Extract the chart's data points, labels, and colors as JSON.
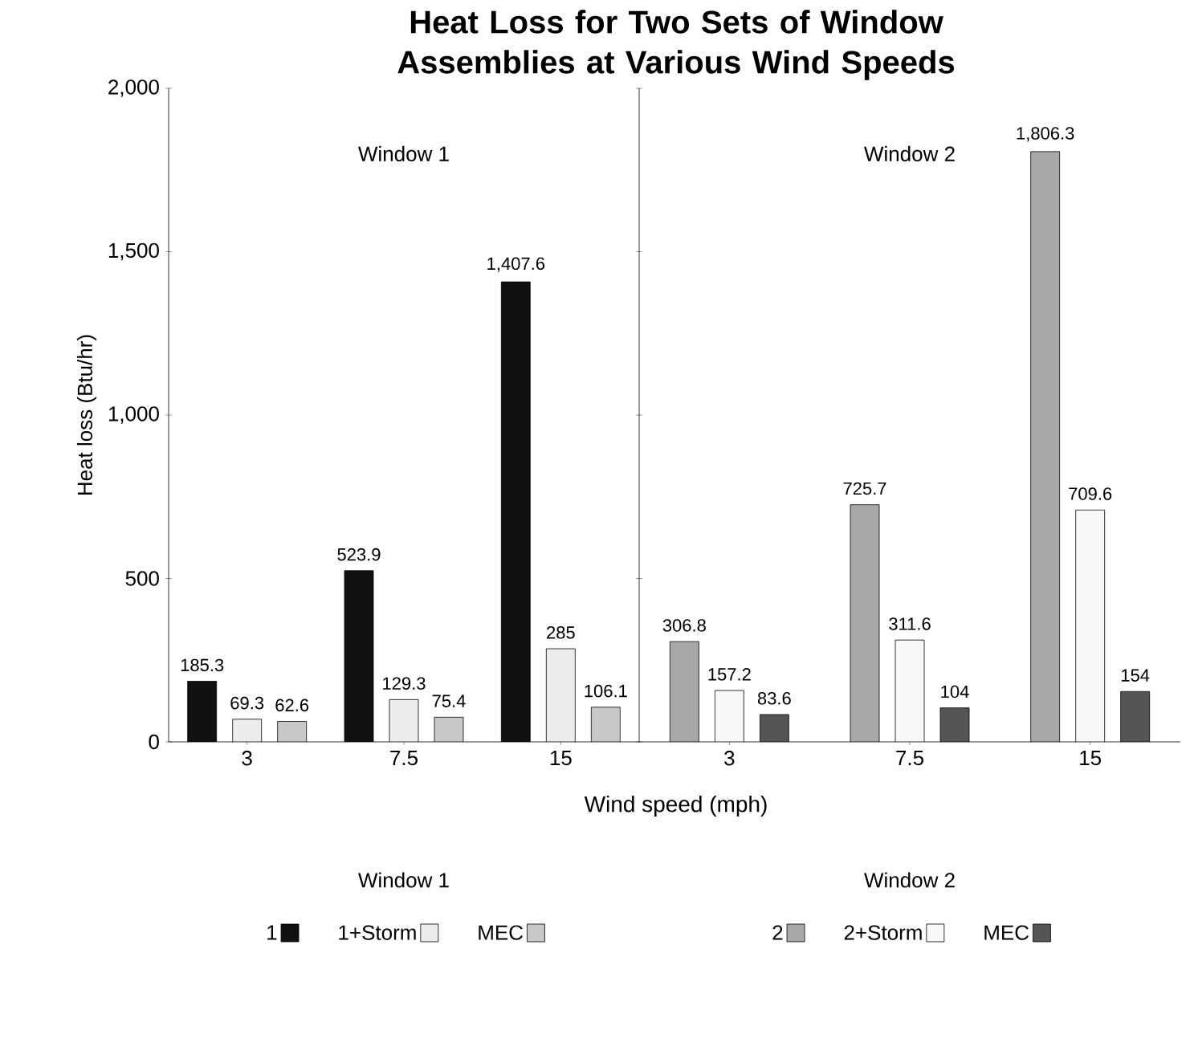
{
  "chart_data": [
    {
      "type": "bar",
      "title": "Heat Loss for Two Sets of Window Assemblies at Various Wind Speeds",
      "xlabel": "Wind speed (mph)",
      "ylabel": "Heat loss (Btu/hr)",
      "legend_title": "Window 1",
      "annotations": [
        "Window 1"
      ],
      "categories": [
        "3",
        "7.5",
        "15"
      ],
      "series": [
        {
          "name": "1",
          "color": "#111111",
          "values": [
            185.3,
            523.9,
            1407.6
          ],
          "value_labels": [
            "185.3",
            "523.9",
            "1,407.6"
          ]
        },
        {
          "name": "1+Storm",
          "color": "#ececec",
          "values": [
            69.3,
            129.3,
            285
          ],
          "value_labels": [
            "69.3",
            "129.3",
            "285"
          ]
        },
        {
          "name": "MEC",
          "color": "#c8c8c8",
          "values": [
            62.6,
            75.4,
            106.1
          ],
          "value_labels": [
            "62.6",
            "75.4",
            "106.1"
          ]
        }
      ],
      "ylim": [
        0,
        2000
      ],
      "yticks": [
        0,
        500,
        {
          "value": 1000,
          "label": "1,000"
        },
        {
          "value": 1500,
          "label": "1,500"
        },
        {
          "value": 2000,
          "label": "2,000"
        }
      ],
      "legend": "bottom"
    },
    {
      "type": "bar",
      "legend_title": "Window 2",
      "annotations": [
        "Window 2"
      ],
      "categories": [
        "3",
        "7.5",
        "15"
      ],
      "series": [
        {
          "name": "2",
          "color": "#a8a8a8",
          "values": [
            306.8,
            725.7,
            1806.3
          ],
          "value_labels": [
            "306.8",
            "725.7",
            "1,806.3"
          ]
        },
        {
          "name": "2+Storm",
          "color": "#f8f8f8",
          "values": [
            157.2,
            311.6,
            709.6
          ],
          "value_labels": [
            "157.2",
            "311.6",
            "709.6"
          ]
        },
        {
          "name": "MEC",
          "color": "#555555",
          "values": [
            83.6,
            104,
            154
          ],
          "value_labels": [
            "83.6",
            "104",
            "154"
          ]
        }
      ],
      "ylim": [
        0,
        2000
      ],
      "yticks": [
        0,
        500,
        1000,
        1500,
        2000
      ],
      "tick_labels": "x",
      "legend": "bottom"
    }
  ]
}
